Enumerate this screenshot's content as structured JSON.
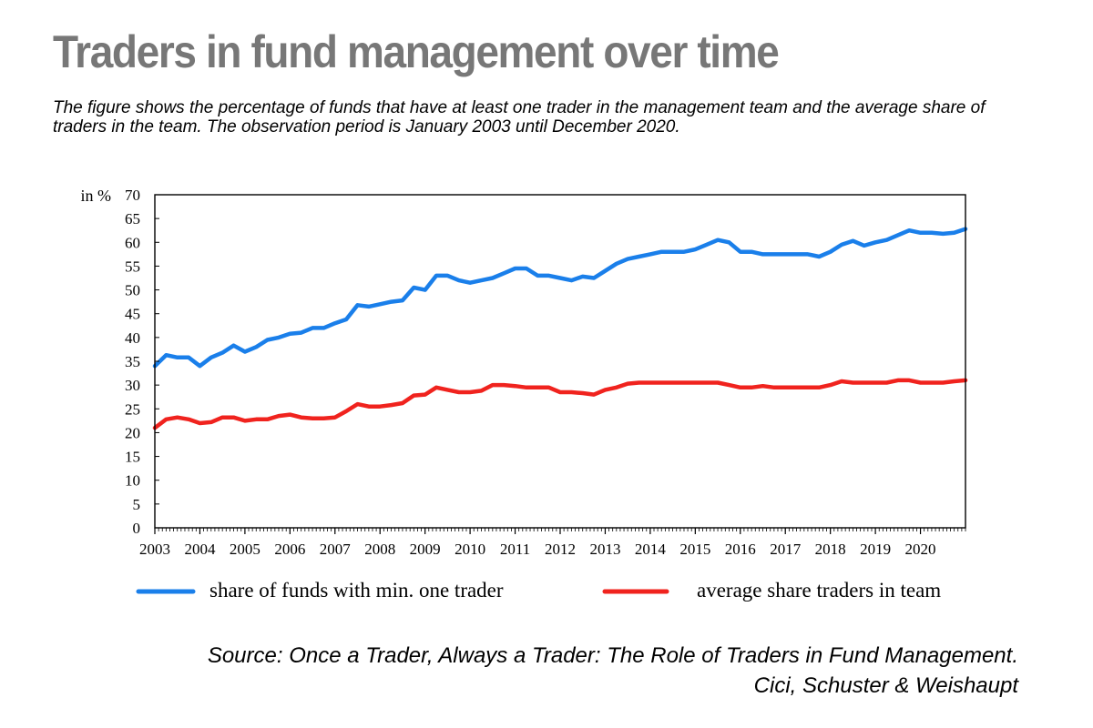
{
  "title": "Traders in fund management over time",
  "subtitle": "The figure shows the percentage of funds that have at least one trader in the management team and the average share of traders in the team. The observation period is January 2003 until December 2020.",
  "source": {
    "line1": "Source: Once a Trader, Always a Trader: The Role of Traders in Fund Management.",
    "line2": "Cici, Schuster & Weishaupt"
  },
  "chart_data": {
    "type": "line",
    "title": "",
    "ylabel": "in %",
    "xlabel": "",
    "ylim": [
      0,
      70
    ],
    "xlim": [
      2003,
      2021
    ],
    "yticks": [
      0,
      5,
      10,
      15,
      20,
      25,
      30,
      35,
      40,
      45,
      50,
      55,
      60,
      65,
      70
    ],
    "xticks": [
      "2003",
      "2004",
      "2005",
      "2006",
      "2007",
      "2008",
      "2009",
      "2010",
      "2011",
      "2012",
      "2013",
      "2014",
      "2015",
      "2016",
      "2017",
      "2018",
      "2019",
      "2020"
    ],
    "grid": false,
    "legend_position": "bottom",
    "series": [
      {
        "name": "share of funds with min. one trader",
        "color": "#1a7fea",
        "x": [
          2003.0,
          2003.25,
          2003.5,
          2003.75,
          2004.0,
          2004.25,
          2004.5,
          2004.75,
          2005.0,
          2005.25,
          2005.5,
          2005.75,
          2006.0,
          2006.25,
          2006.5,
          2006.75,
          2007.0,
          2007.25,
          2007.5,
          2007.75,
          2008.0,
          2008.25,
          2008.5,
          2008.75,
          2009.0,
          2009.25,
          2009.5,
          2009.75,
          2010.0,
          2010.25,
          2010.5,
          2010.75,
          2011.0,
          2011.25,
          2011.5,
          2011.75,
          2012.0,
          2012.25,
          2012.5,
          2012.75,
          2013.0,
          2013.25,
          2013.5,
          2013.75,
          2014.0,
          2014.25,
          2014.5,
          2014.75,
          2015.0,
          2015.25,
          2015.5,
          2015.75,
          2016.0,
          2016.25,
          2016.5,
          2016.75,
          2017.0,
          2017.25,
          2017.5,
          2017.75,
          2018.0,
          2018.25,
          2018.5,
          2018.75,
          2019.0,
          2019.25,
          2019.5,
          2019.75,
          2020.0,
          2020.25,
          2020.5,
          2020.75,
          2021.0
        ],
        "values": [
          34.0,
          36.3,
          35.8,
          35.8,
          34.0,
          35.8,
          36.8,
          38.3,
          37.0,
          38.0,
          39.5,
          40.0,
          40.8,
          41.0,
          42.0,
          42.0,
          43.0,
          43.8,
          46.8,
          46.5,
          47.0,
          47.5,
          47.8,
          50.5,
          50.0,
          53.0,
          53.0,
          52.0,
          51.5,
          52.0,
          52.5,
          53.5,
          54.5,
          54.5,
          53.0,
          53.0,
          52.5,
          52.0,
          52.8,
          52.5,
          54.0,
          55.5,
          56.5,
          57.0,
          57.5,
          58.0,
          58.0,
          58.0,
          58.5,
          59.5,
          60.5,
          60.0,
          58.0,
          58.0,
          57.5,
          57.5,
          57.5,
          57.5,
          57.5,
          57.0,
          58.0,
          59.5,
          60.3,
          59.3,
          60.0,
          60.5,
          61.5,
          62.5,
          62.0,
          62.0,
          61.8,
          62.0,
          62.8
        ]
      },
      {
        "name": "average share traders in team",
        "color": "#f0231e",
        "x": [
          2003.0,
          2003.25,
          2003.5,
          2003.75,
          2004.0,
          2004.25,
          2004.5,
          2004.75,
          2005.0,
          2005.25,
          2005.5,
          2005.75,
          2006.0,
          2006.25,
          2006.5,
          2006.75,
          2007.0,
          2007.25,
          2007.5,
          2007.75,
          2008.0,
          2008.25,
          2008.5,
          2008.75,
          2009.0,
          2009.25,
          2009.5,
          2009.75,
          2010.0,
          2010.25,
          2010.5,
          2010.75,
          2011.0,
          2011.25,
          2011.5,
          2011.75,
          2012.0,
          2012.25,
          2012.5,
          2012.75,
          2013.0,
          2013.25,
          2013.5,
          2013.75,
          2014.0,
          2014.25,
          2014.5,
          2014.75,
          2015.0,
          2015.25,
          2015.5,
          2015.75,
          2016.0,
          2016.25,
          2016.5,
          2016.75,
          2017.0,
          2017.25,
          2017.5,
          2017.75,
          2018.0,
          2018.25,
          2018.5,
          2018.75,
          2019.0,
          2019.25,
          2019.5,
          2019.75,
          2020.0,
          2020.25,
          2020.5,
          2020.75,
          2021.0
        ],
        "values": [
          21.0,
          22.8,
          23.2,
          22.8,
          22.0,
          22.2,
          23.2,
          23.2,
          22.5,
          22.8,
          22.8,
          23.5,
          23.8,
          23.2,
          23.0,
          23.0,
          23.2,
          24.5,
          26.0,
          25.5,
          25.5,
          25.8,
          26.2,
          27.8,
          28.0,
          29.5,
          29.0,
          28.5,
          28.5,
          28.8,
          30.0,
          30.0,
          29.8,
          29.5,
          29.5,
          29.5,
          28.5,
          28.5,
          28.3,
          28.0,
          29.0,
          29.5,
          30.3,
          30.5,
          30.5,
          30.5,
          30.5,
          30.5,
          30.5,
          30.5,
          30.5,
          30.0,
          29.5,
          29.5,
          29.8,
          29.5,
          29.5,
          29.5,
          29.5,
          29.5,
          30.0,
          30.8,
          30.5,
          30.5,
          30.5,
          30.5,
          31.0,
          31.0,
          30.5,
          30.5,
          30.5,
          30.8,
          31.0
        ]
      }
    ]
  }
}
